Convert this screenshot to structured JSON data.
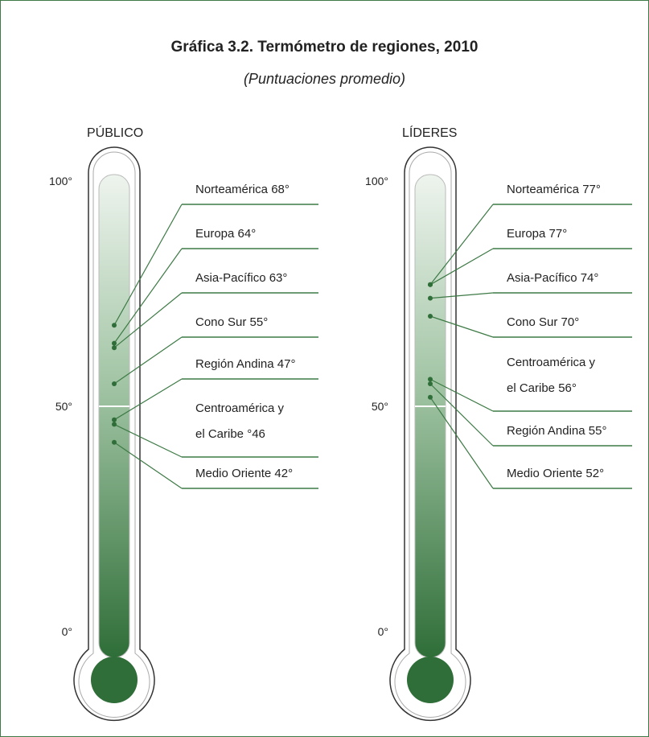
{
  "title": "Gráfica 3.2. Termómetro de regiones, 2010",
  "subtitle": "(Puntuaciones promedio)",
  "chart_data": [
    {
      "type": "thermometer",
      "title": "PÚBLICO",
      "color": "#2f6e38",
      "ylim": [
        0,
        100
      ],
      "yticks": [
        {
          "value": 100,
          "label": "100°"
        },
        {
          "value": 50,
          "label": "50°"
        },
        {
          "value": 0,
          "label": "0°"
        }
      ],
      "categories": [
        "Norteamérica",
        "Europa",
        "Asia-Pacífico",
        "Cono Sur",
        "Región Andina",
        "Centroamérica y el Caribe",
        "Medio Oriente"
      ],
      "values": [
        68,
        64,
        63,
        55,
        47,
        46,
        42
      ],
      "value_labels": [
        "68°",
        "64°",
        "63°",
        "55°",
        "47°",
        "°46",
        "42°"
      ]
    },
    {
      "type": "thermometer",
      "title": "LÍDERES",
      "color": "#2f6e38",
      "ylim": [
        0,
        100
      ],
      "yticks": [
        {
          "value": 100,
          "label": "100°"
        },
        {
          "value": 50,
          "label": "50°"
        },
        {
          "value": 0,
          "label": "0°"
        }
      ],
      "categories": [
        "Norteamérica",
        "Europa",
        "Asia-Pacífico",
        "Cono Sur",
        "Centroamérica y el Caribe",
        "Región Andina",
        "Medio Oriente"
      ],
      "values": [
        77,
        77,
        74,
        70,
        56,
        55,
        52
      ],
      "value_labels": [
        "77°",
        "77°",
        "74°",
        "70°",
        "56°",
        "55°",
        "52°"
      ]
    }
  ]
}
